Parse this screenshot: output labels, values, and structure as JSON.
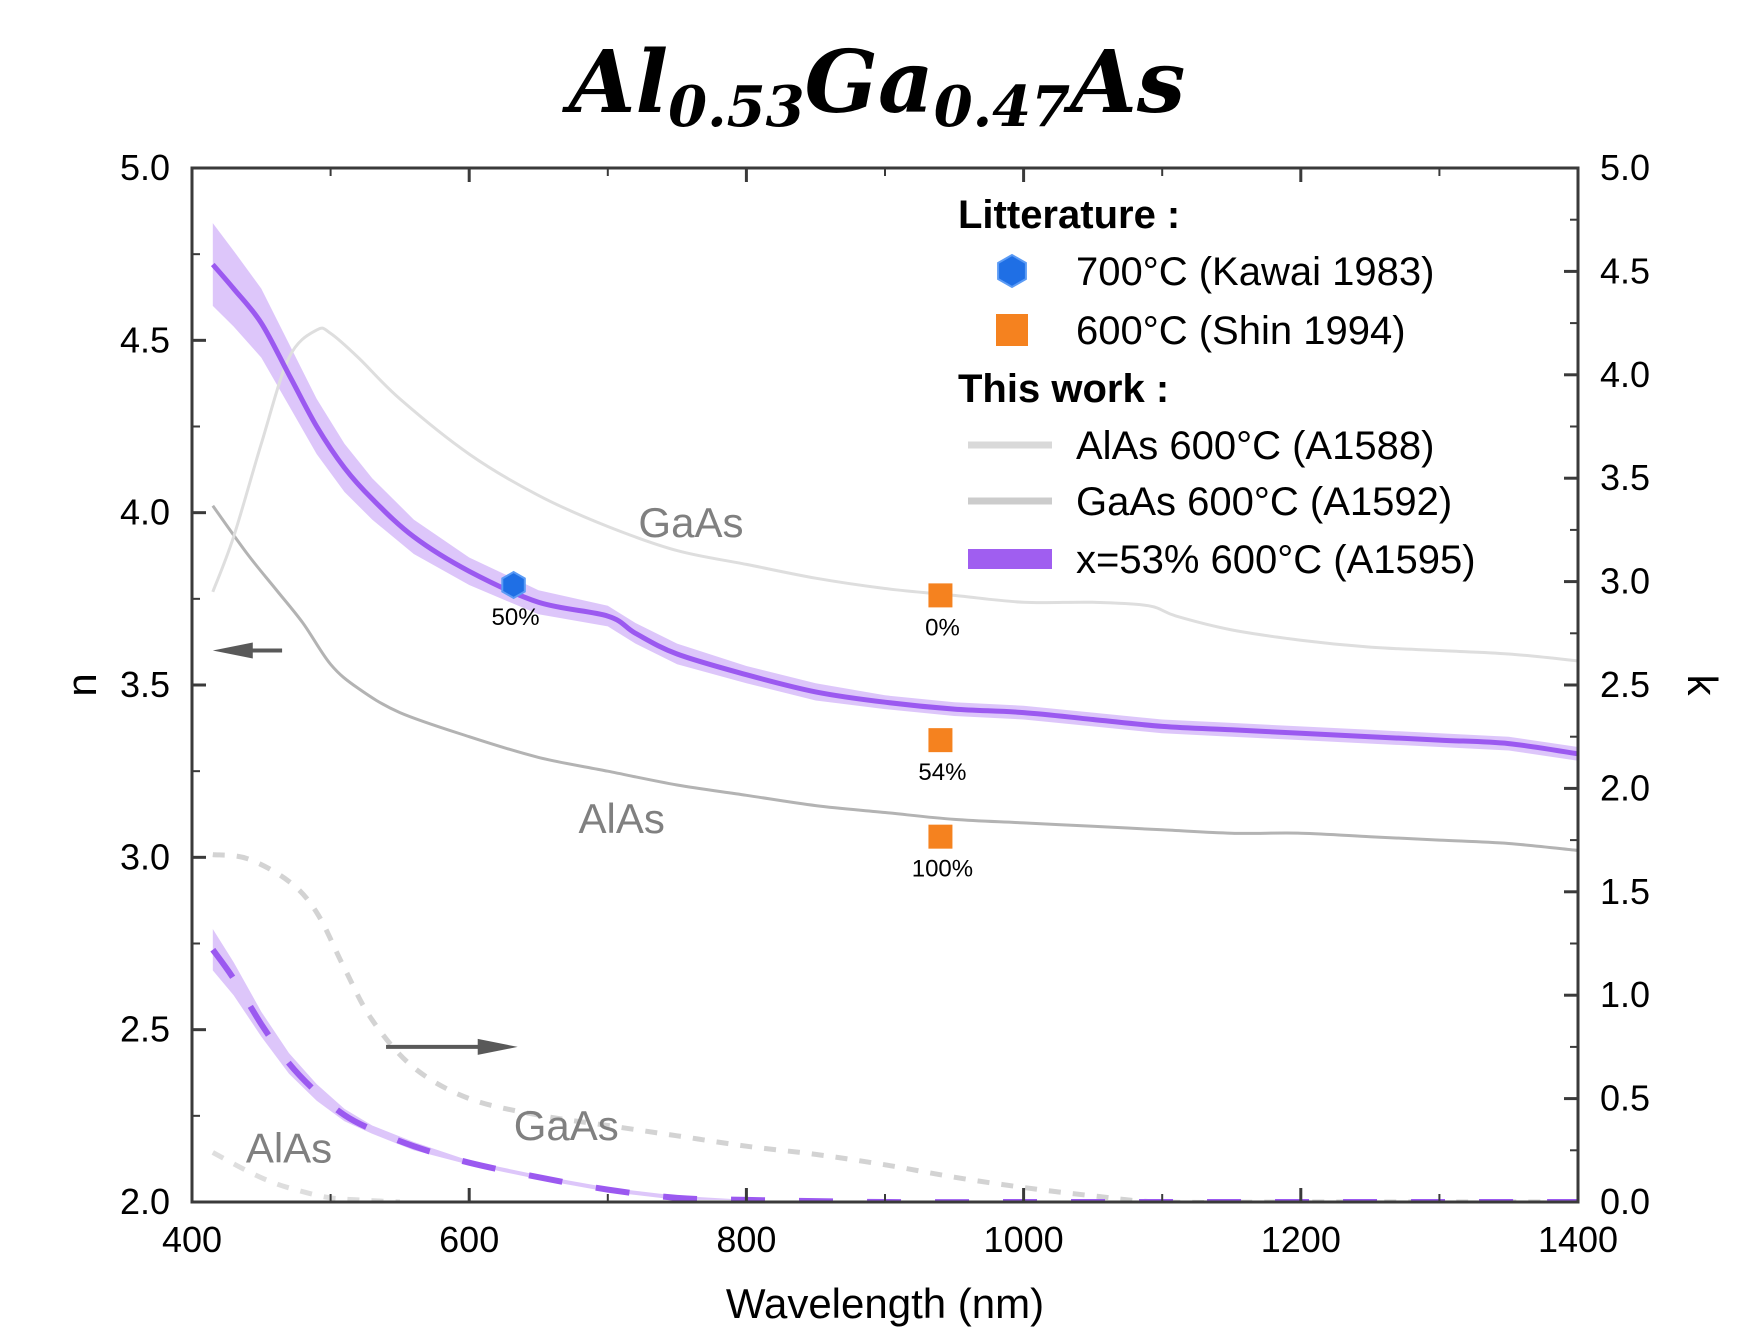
{
  "chart_data": {
    "type": "line",
    "title": {
      "parts": [
        {
          "text": "Al",
          "sub": false
        },
        {
          "text": "0.53",
          "sub": true
        },
        {
          "text": "Ga",
          "sub": false
        },
        {
          "text": "0.47",
          "sub": true
        },
        {
          "text": "As",
          "sub": false
        }
      ]
    },
    "xlabel": "Wavelength (nm)",
    "ylabel_left": "n",
    "ylabel_right": "k",
    "xlim": [
      400,
      1400
    ],
    "ylim_left": [
      2.0,
      5.0
    ],
    "ylim_right": [
      0.0,
      5.0
    ],
    "x_ticks": [
      400,
      600,
      800,
      1000,
      1200,
      1400
    ],
    "x_tick_labels": [
      "400",
      "600",
      "800",
      "1000",
      "1200",
      "1400"
    ],
    "y_left_ticks": [
      2.0,
      2.5,
      3.0,
      3.5,
      4.0,
      4.5,
      5.0
    ],
    "y_left_tick_labels": [
      "2.0",
      "2.5",
      "3.0",
      "3.5",
      "4.0",
      "4.5",
      "5.0"
    ],
    "y_right_ticks": [
      0.0,
      0.5,
      1.0,
      1.5,
      2.0,
      2.5,
      3.0,
      3.5,
      4.0,
      4.5,
      5.0
    ],
    "y_right_tick_labels": [
      "0.0",
      "0.5",
      "1.0",
      "1.5",
      "2.0",
      "2.5",
      "3.0",
      "3.5",
      "4.0",
      "4.5",
      "5.0"
    ],
    "grid": false,
    "legend_position": "top-right",
    "legend": {
      "heading_literature": "Litterature :",
      "heading_this_work": "This work :",
      "entries": [
        {
          "label": "700°C (Kawai 1983)",
          "marker": "hexagon",
          "color": "#1f6fe5"
        },
        {
          "label": "600°C (Shin 1994)",
          "marker": "square",
          "color": "#f5821f"
        },
        {
          "label": "AlAs 600°C (A1588)",
          "marker": "line",
          "color": "#d9d9d9"
        },
        {
          "label": "GaAs 600°C (A1592)",
          "marker": "line",
          "color": "#cccccc"
        },
        {
          "label": " x=53% 600°C (A1595)",
          "marker": "band",
          "color": "#a05ef0"
        }
      ]
    },
    "series": [
      {
        "name": "AlAs 600°C (A1588)",
        "quantity": "n",
        "axis": "left",
        "color": "#b3b3b3",
        "style": "solid",
        "x": [
          415,
          440,
          460,
          480,
          500,
          520,
          550,
          600,
          650,
          700,
          750,
          800,
          850,
          900,
          950,
          1000,
          1050,
          1100,
          1150,
          1200,
          1250,
          1300,
          1350,
          1400
        ],
        "y": [
          4.02,
          3.88,
          3.78,
          3.68,
          3.56,
          3.49,
          3.42,
          3.35,
          3.29,
          3.25,
          3.21,
          3.18,
          3.15,
          3.13,
          3.11,
          3.1,
          3.09,
          3.08,
          3.07,
          3.07,
          3.06,
          3.05,
          3.04,
          3.02
        ]
      },
      {
        "name": "GaAs 600°C (A1592)",
        "quantity": "n",
        "axis": "left",
        "color": "#dedede",
        "style": "solid",
        "x": [
          415,
          430,
          450,
          470,
          490,
          500,
          520,
          550,
          600,
          650,
          700,
          750,
          800,
          850,
          900,
          950,
          1000,
          1050,
          1090,
          1110,
          1150,
          1200,
          1250,
          1300,
          1350,
          1400
        ],
        "y": [
          3.77,
          3.93,
          4.2,
          4.45,
          4.53,
          4.52,
          4.45,
          4.33,
          4.17,
          4.05,
          3.96,
          3.89,
          3.85,
          3.81,
          3.78,
          3.76,
          3.74,
          3.74,
          3.73,
          3.7,
          3.66,
          3.63,
          3.61,
          3.6,
          3.59,
          3.57
        ]
      },
      {
        "name": " x=53% 600°C (A1595)",
        "quantity": "n",
        "axis": "left",
        "color": "#9b59f0",
        "band_color": "#d9c0fa",
        "style": "solid",
        "x": [
          415,
          430,
          450,
          470,
          490,
          510,
          530,
          560,
          600,
          650,
          700,
          720,
          750,
          800,
          850,
          900,
          950,
          1000,
          1050,
          1100,
          1150,
          1200,
          1250,
          1300,
          1350,
          1400
        ],
        "y": [
          4.72,
          4.65,
          4.55,
          4.4,
          4.25,
          4.13,
          4.04,
          3.93,
          3.83,
          3.74,
          3.7,
          3.65,
          3.59,
          3.53,
          3.48,
          3.45,
          3.43,
          3.42,
          3.4,
          3.38,
          3.37,
          3.36,
          3.35,
          3.34,
          3.33,
          3.3
        ],
        "band_halfwidth": [
          0.12,
          0.11,
          0.1,
          0.09,
          0.08,
          0.07,
          0.06,
          0.05,
          0.04,
          0.035,
          0.03,
          0.03,
          0.03,
          0.025,
          0.025,
          0.02,
          0.02,
          0.02,
          0.02,
          0.02,
          0.02,
          0.02,
          0.02,
          0.02,
          0.02,
          0.02
        ]
      },
      {
        "name": "AlAs 600°C (A1588)",
        "quantity": "k",
        "axis": "right",
        "color": "#dedede",
        "style": "dashed",
        "x": [
          415,
          440,
          460,
          480,
          500,
          520,
          550
        ],
        "y": [
          0.24,
          0.15,
          0.09,
          0.05,
          0.02,
          0.01,
          0.0
        ]
      },
      {
        "name": "GaAs 600°C (A1592)",
        "quantity": "k",
        "axis": "right",
        "color": "#d3d3d3",
        "style": "dashed",
        "x": [
          415,
          440,
          470,
          490,
          510,
          530,
          560,
          600,
          650,
          700,
          750,
          800,
          850,
          900,
          950,
          1000,
          1050,
          1100,
          1200,
          1300,
          1400
        ],
        "y": [
          1.68,
          1.66,
          1.55,
          1.4,
          1.13,
          0.88,
          0.65,
          0.5,
          0.42,
          0.37,
          0.32,
          0.27,
          0.23,
          0.18,
          0.12,
          0.07,
          0.03,
          0.0,
          0.0,
          0.0,
          0.0
        ]
      },
      {
        "name": " x=53% 600°C (A1595)",
        "quantity": "k",
        "axis": "right",
        "color": "#9b59f0",
        "band_color": "#d9c0fa",
        "style": "dashed",
        "x": [
          415,
          430,
          450,
          470,
          490,
          510,
          530,
          560,
          600,
          650,
          700,
          750,
          800,
          900,
          1000,
          1100,
          1200,
          1300,
          1400
        ],
        "y": [
          1.22,
          1.08,
          0.86,
          0.67,
          0.53,
          0.42,
          0.35,
          0.27,
          0.19,
          0.12,
          0.06,
          0.02,
          0.01,
          0.0,
          0.0,
          0.0,
          0.0,
          0.0,
          0.0
        ],
        "band_halfwidth": [
          0.1,
          0.08,
          0.06,
          0.05,
          0.04,
          0.03,
          0.02,
          0.02,
          0.01,
          0.01,
          0.01,
          0.01,
          0.0,
          0.0,
          0.0,
          0.0,
          0.0,
          0.0,
          0.0
        ]
      },
      {
        "name": "700°C (Kawai 1983)",
        "quantity": "n",
        "axis": "left",
        "type": "scatter",
        "marker": "hexagon",
        "color": "#1f6fe5",
        "points": [
          {
            "x": 632,
            "y": 3.79,
            "label": "50%"
          }
        ]
      },
      {
        "name": "600°C (Shin 1994)",
        "quantity": "n",
        "axis": "left",
        "type": "scatter",
        "marker": "square",
        "color": "#f5821f",
        "points": [
          {
            "x": 940,
            "y": 3.76,
            "label": "0%"
          },
          {
            "x": 940,
            "y": 3.34,
            "label": "54%"
          },
          {
            "x": 940,
            "y": 3.06,
            "label": "100%"
          }
        ]
      }
    ],
    "annotations": [
      {
        "text": "GaAs",
        "x": 760,
        "y": 3.93,
        "axis": "left"
      },
      {
        "text": "AlAs",
        "x": 710,
        "y": 3.07,
        "axis": "left"
      },
      {
        "text": "GaAs",
        "x": 670,
        "y": 0.3,
        "axis": "right"
      },
      {
        "text": "AlAs",
        "x": 470,
        "y": 0.19,
        "axis": "right"
      }
    ],
    "arrows": [
      {
        "direction": "left",
        "x_from": 465,
        "x_to": 415,
        "y": 3.6,
        "axis": "left",
        "meaning": "n"
      },
      {
        "direction": "right",
        "x_from": 540,
        "x_to": 635,
        "y": 0.75,
        "axis": "right",
        "meaning": "k"
      }
    ]
  }
}
